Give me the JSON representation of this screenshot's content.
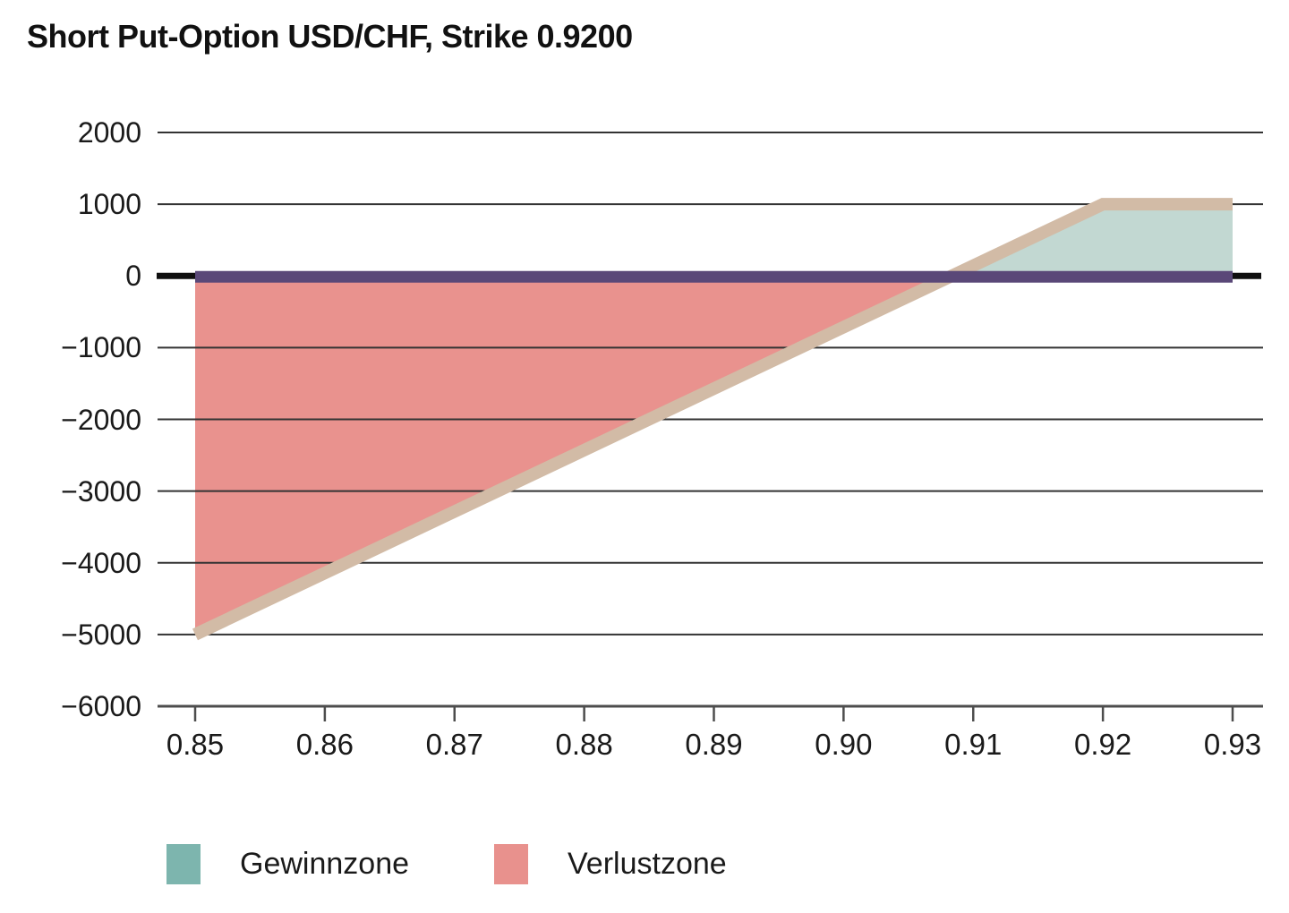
{
  "chart_data": {
    "type": "area",
    "title": "Short Put-Option USD/CHF, Strike 0.9200",
    "xlabel": "",
    "ylabel": "",
    "x_axis": {
      "min": 0.85,
      "max": 0.93,
      "ticks": [
        {
          "value": 0.85,
          "label": "0.85"
        },
        {
          "value": 0.86,
          "label": "0.86"
        },
        {
          "value": 0.87,
          "label": "0.87"
        },
        {
          "value": 0.88,
          "label": "0.88"
        },
        {
          "value": 0.89,
          "label": "0.89"
        },
        {
          "value": 0.9,
          "label": "0.90"
        },
        {
          "value": 0.91,
          "label": "0.91"
        },
        {
          "value": 0.92,
          "label": "0.92"
        },
        {
          "value": 0.93,
          "label": "0.93"
        }
      ]
    },
    "y_axis": {
      "min": -6000,
      "max": 2000,
      "ticks": [
        {
          "value": 2000,
          "label": "2000"
        },
        {
          "value": 1000,
          "label": "1000"
        },
        {
          "value": 0,
          "label": "0"
        },
        {
          "value": -1000,
          "label": "−1000"
        },
        {
          "value": -2000,
          "label": "−2000"
        },
        {
          "value": -3000,
          "label": "−3000"
        },
        {
          "value": -4000,
          "label": "−4000"
        },
        {
          "value": -5000,
          "label": "−5000"
        },
        {
          "value": -6000,
          "label": "−6000"
        }
      ]
    },
    "payoff_line": {
      "name": "payoff-line",
      "color": "#d2bba6",
      "width": 14,
      "points": [
        [
          0.85,
          -5000
        ],
        [
          0.92,
          1000
        ],
        [
          0.93,
          1000
        ]
      ]
    },
    "zero_line": {
      "name": "zero-premium-line",
      "color": "#5a4878",
      "width": 13,
      "y": 0,
      "x_from": 0.85,
      "x_to": 0.93
    },
    "profit_area": {
      "fill": "#c2d8d2"
    },
    "loss_area": {
      "fill": "#e9928e"
    },
    "grid": {
      "show": true,
      "color": "#333333",
      "zero_line_color": "#0f0f0f",
      "axis_color": "#4d4d4d"
    },
    "legend_position": "bottom",
    "legend": [
      {
        "label": "Gewinnzone",
        "color": "#7db5ae"
      },
      {
        "label": "Verlustzone",
        "color": "#e8918d"
      }
    ]
  }
}
